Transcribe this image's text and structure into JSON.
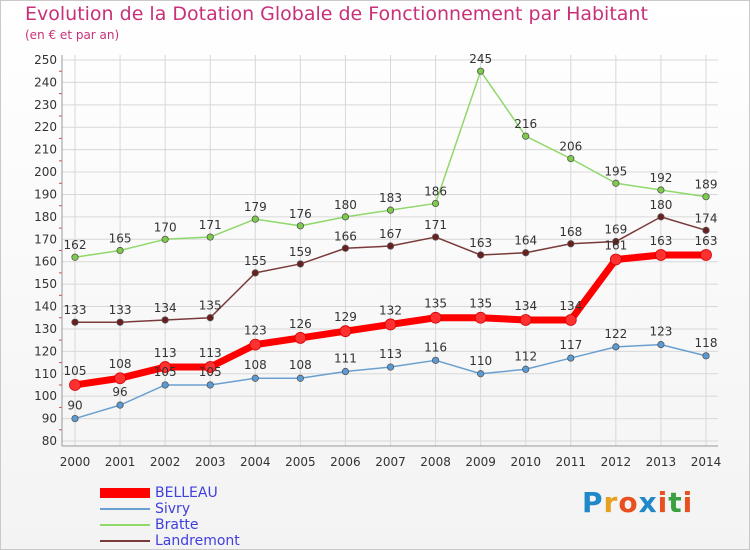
{
  "header": {
    "title": "Evolution de la Dotation Globale de Fonctionnement par Habitant",
    "subtitle": "(en € et par an)"
  },
  "logo": {
    "text": "Proxiti",
    "letter_colors": [
      "#1e88c8",
      "#e8a020",
      "#e85020",
      "#1e88c8",
      "#e85020",
      "#3aa040",
      "#e85020"
    ]
  },
  "colors": {
    "title": "#c8317a",
    "legend_text": "#4040e0",
    "grid": "#d8d8d8",
    "tick_text": "#333333"
  },
  "chart_data": {
    "type": "line",
    "title": "Evolution de la Dotation Globale de Fonctionnement par Habitant",
    "subtitle": "(en € et par an)",
    "x": [
      "2000",
      "2001",
      "2002",
      "2003",
      "2004",
      "2005",
      "2006",
      "2007",
      "2008",
      "2009",
      "2010",
      "2011",
      "2012",
      "2013",
      "2014"
    ],
    "ylim": [
      80,
      250
    ],
    "yticks": [
      80,
      90,
      100,
      110,
      120,
      130,
      140,
      150,
      160,
      170,
      180,
      190,
      200,
      210,
      220,
      230,
      240,
      250
    ],
    "grid": true,
    "legend_position": "bottom-left",
    "series": [
      {
        "name": "BELLEAU",
        "color": "#ff0000",
        "marker_color": "#ff3030",
        "width": 7,
        "values": [
          105,
          108,
          113,
          113,
          123,
          126,
          129,
          132,
          135,
          135,
          134,
          134,
          161,
          163,
          163
        ]
      },
      {
        "name": "Sivry",
        "color": "#6aa0cf",
        "marker_color": "#5b9bd5",
        "width": 1.5,
        "values": [
          90,
          96,
          105,
          105,
          108,
          108,
          111,
          113,
          116,
          110,
          112,
          117,
          122,
          123,
          118
        ]
      },
      {
        "name": "Bratte",
        "color": "#8fd86a",
        "marker_color": "#7ccb4a",
        "width": 1.5,
        "values": [
          162,
          165,
          170,
          171,
          179,
          176,
          180,
          183,
          186,
          245,
          216,
          206,
          195,
          192,
          189
        ]
      },
      {
        "name": "Landremont",
        "color": "#7a3a3a",
        "marker_color": "#6a1f1f",
        "width": 1.5,
        "values": [
          133,
          133,
          134,
          135,
          155,
          159,
          166,
          167,
          171,
          163,
          164,
          168,
          169,
          180,
          174
        ]
      }
    ]
  }
}
